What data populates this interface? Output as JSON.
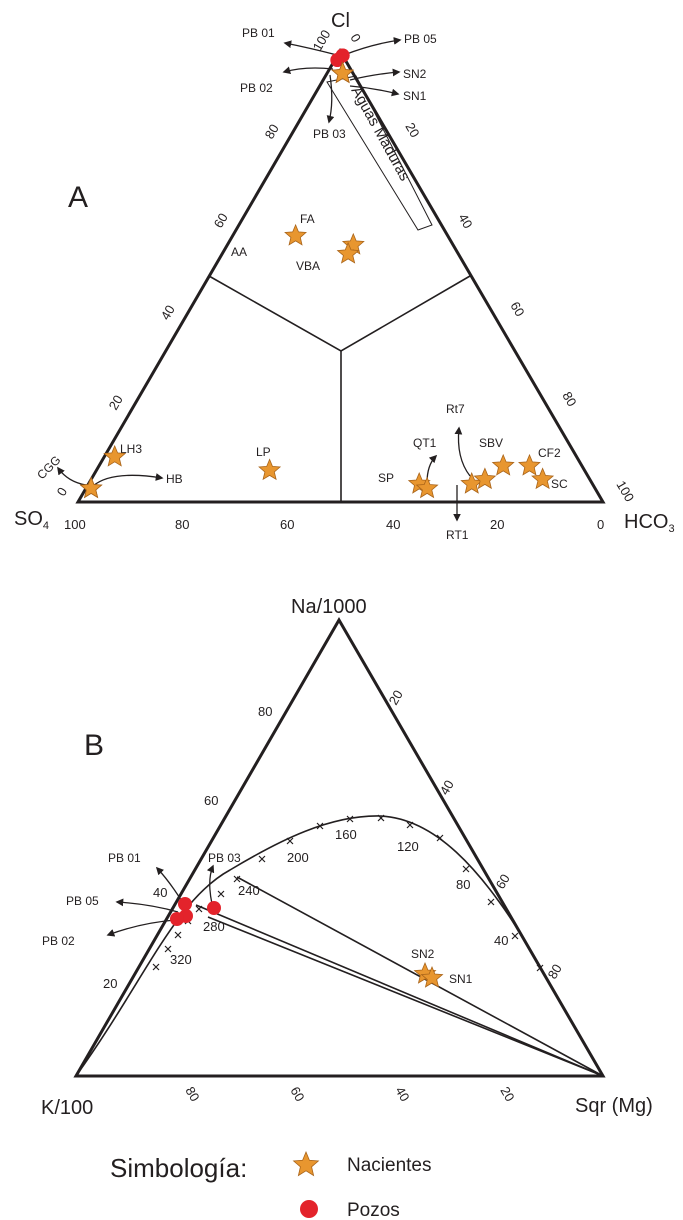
{
  "colors": {
    "star": "#e8962f",
    "star_stroke": "#a9641a",
    "well": "#e3232b",
    "ink": "#231f20"
  },
  "chart_data": [
    {
      "type": "ternary",
      "panel_label": "A",
      "vertices": {
        "top": "Cl",
        "left": "SO4",
        "left_sub": "4",
        "left_main": "SO",
        "right": "HCO3",
        "right_main": "HCO",
        "right_sub": "3"
      },
      "ticks": {
        "left_edge": [
          "0",
          "20",
          "40",
          "60",
          "80",
          "100"
        ],
        "right_edge": [
          "0",
          "20",
          "40",
          "60",
          "80",
          "100"
        ],
        "bottom_edge": [
          "100",
          "80",
          "60",
          "40",
          "20",
          "0"
        ]
      },
      "field_label": "Aguas Maduras",
      "points": [
        {
          "label": "PB 01",
          "kind": "pozo",
          "cl": 99,
          "hco3": 1
        },
        {
          "label": "PB 05",
          "kind": "pozo",
          "cl": 99,
          "hco3": 1
        },
        {
          "label": "PB 02",
          "kind": "pozo",
          "cl": 98,
          "hco3": 0.5
        },
        {
          "label": "PB 03",
          "kind": "pozo",
          "cl": 98,
          "hco3": 0.5
        },
        {
          "label": "SN2",
          "kind": "naciente",
          "cl": 95,
          "hco3": 3
        },
        {
          "label": "SN1",
          "kind": "naciente",
          "cl": 95,
          "hco3": 3
        },
        {
          "label": "AA",
          "kind": "naciente",
          "cl": 59,
          "hco3": 12
        },
        {
          "label": "FA",
          "kind": "naciente",
          "cl": 57,
          "hco3": 24
        },
        {
          "label": "VBA",
          "kind": "naciente",
          "cl": 55,
          "hco3": 24
        },
        {
          "label": "LH3",
          "kind": "naciente",
          "cl": 10,
          "hco3": 2
        },
        {
          "label": "CGG",
          "kind": "naciente",
          "cl": 3,
          "hco3": 1
        },
        {
          "label": "HB",
          "kind": "naciente",
          "cl": 3,
          "hco3": 1
        },
        {
          "label": "LP",
          "kind": "naciente",
          "cl": 7,
          "hco3": 33
        },
        {
          "label": "SP",
          "kind": "naciente",
          "cl": 4,
          "hco3": 63
        },
        {
          "label": "QT1",
          "kind": "naciente",
          "cl": 3,
          "hco3": 65
        },
        {
          "label": "RT1",
          "kind": "naciente",
          "cl": 4,
          "hco3": 73
        },
        {
          "label": "Rt7",
          "kind": "naciente",
          "cl": 5,
          "hco3": 75
        },
        {
          "label": "SBV",
          "kind": "naciente",
          "cl": 8,
          "hco3": 77
        },
        {
          "label": "CF2",
          "kind": "naciente",
          "cl": 8,
          "hco3": 82
        },
        {
          "label": "SC",
          "kind": "naciente",
          "cl": 5,
          "hco3": 86
        }
      ]
    },
    {
      "type": "ternary",
      "panel_label": "B",
      "vertices": {
        "top": "Na/1000",
        "left": "K/100",
        "right": "Sqr (Mg)"
      },
      "ticks": {
        "left_edge": [
          "80",
          "60",
          "40",
          "20"
        ],
        "right_edge": [
          "20",
          "40",
          "60",
          "80"
        ],
        "bottom_edge": [
          "80",
          "60",
          "40",
          "20"
        ]
      },
      "curve_labels": [
        "160",
        "120",
        "200",
        "80",
        "240",
        "40",
        "280",
        "320"
      ],
      "points": [
        {
          "label": "PB 01",
          "kind": "pozo"
        },
        {
          "label": "PB 03",
          "kind": "pozo"
        },
        {
          "label": "PB 05",
          "kind": "pozo"
        },
        {
          "label": "PB 02",
          "kind": "pozo"
        },
        {
          "label": "SN2",
          "kind": "naciente"
        },
        {
          "label": "SN1",
          "kind": "naciente"
        }
      ]
    }
  ],
  "legend": {
    "title": "Simbología:",
    "items": [
      {
        "label": "Nacientes",
        "kind": "naciente"
      },
      {
        "label": "Pozos",
        "kind": "pozo"
      }
    ]
  }
}
